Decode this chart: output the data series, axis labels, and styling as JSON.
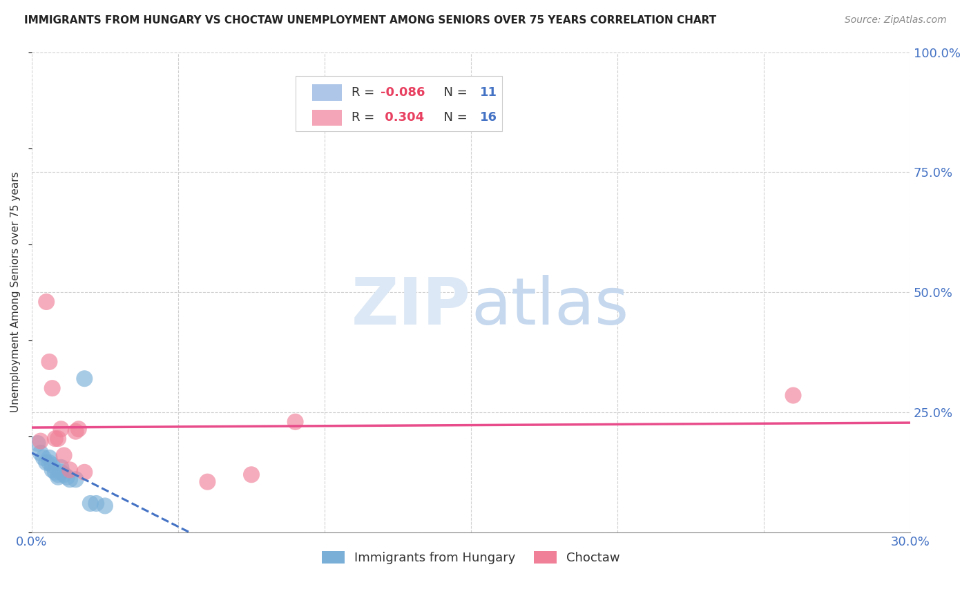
{
  "title": "IMMIGRANTS FROM HUNGARY VS CHOCTAW UNEMPLOYMENT AMONG SENIORS OVER 75 YEARS CORRELATION CHART",
  "source": "Source: ZipAtlas.com",
  "ylabel": "Unemployment Among Seniors over 75 years",
  "xlim": [
    0.0,
    0.3
  ],
  "ylim": [
    0.0,
    1.0
  ],
  "xticks": [
    0.0,
    0.05,
    0.1,
    0.15,
    0.2,
    0.25,
    0.3
  ],
  "xticklabels": [
    "0.0%",
    "",
    "",
    "",
    "",
    "",
    "30.0%"
  ],
  "yticks_right": [
    0.0,
    0.25,
    0.5,
    0.75,
    1.0
  ],
  "yticklabels_right": [
    "",
    "25.0%",
    "50.0%",
    "75.0%",
    "100.0%"
  ],
  "hungary_points": [
    [
      0.002,
      0.185
    ],
    [
      0.003,
      0.165
    ],
    [
      0.004,
      0.155
    ],
    [
      0.005,
      0.145
    ],
    [
      0.006,
      0.155
    ],
    [
      0.006,
      0.145
    ],
    [
      0.007,
      0.14
    ],
    [
      0.007,
      0.13
    ],
    [
      0.008,
      0.125
    ],
    [
      0.009,
      0.12
    ],
    [
      0.009,
      0.115
    ],
    [
      0.01,
      0.135
    ],
    [
      0.01,
      0.125
    ],
    [
      0.011,
      0.12
    ],
    [
      0.012,
      0.115
    ],
    [
      0.013,
      0.11
    ],
    [
      0.015,
      0.11
    ],
    [
      0.018,
      0.32
    ],
    [
      0.02,
      0.06
    ],
    [
      0.022,
      0.06
    ],
    [
      0.025,
      0.055
    ]
  ],
  "choctaw_points": [
    [
      0.003,
      0.19
    ],
    [
      0.005,
      0.48
    ],
    [
      0.006,
      0.355
    ],
    [
      0.007,
      0.3
    ],
    [
      0.008,
      0.195
    ],
    [
      0.009,
      0.195
    ],
    [
      0.01,
      0.215
    ],
    [
      0.011,
      0.16
    ],
    [
      0.013,
      0.13
    ],
    [
      0.015,
      0.21
    ],
    [
      0.016,
      0.215
    ],
    [
      0.018,
      0.125
    ],
    [
      0.06,
      0.105
    ],
    [
      0.075,
      0.12
    ],
    [
      0.09,
      0.23
    ],
    [
      0.26,
      0.285
    ]
  ],
  "hungary_color": "#7ab0d8",
  "choctaw_color": "#f08098",
  "hungary_line_color": "#4472C4",
  "choctaw_line_color": "#E84C8A",
  "bg_color": "#ffffff",
  "grid_color": "#d0d0d0",
  "watermark_zip": "ZIP",
  "watermark_atlas": "atlas",
  "watermark_color_zip": "#dde8f4",
  "watermark_color_atlas": "#c8ddf0",
  "axis_color": "#4472C4"
}
